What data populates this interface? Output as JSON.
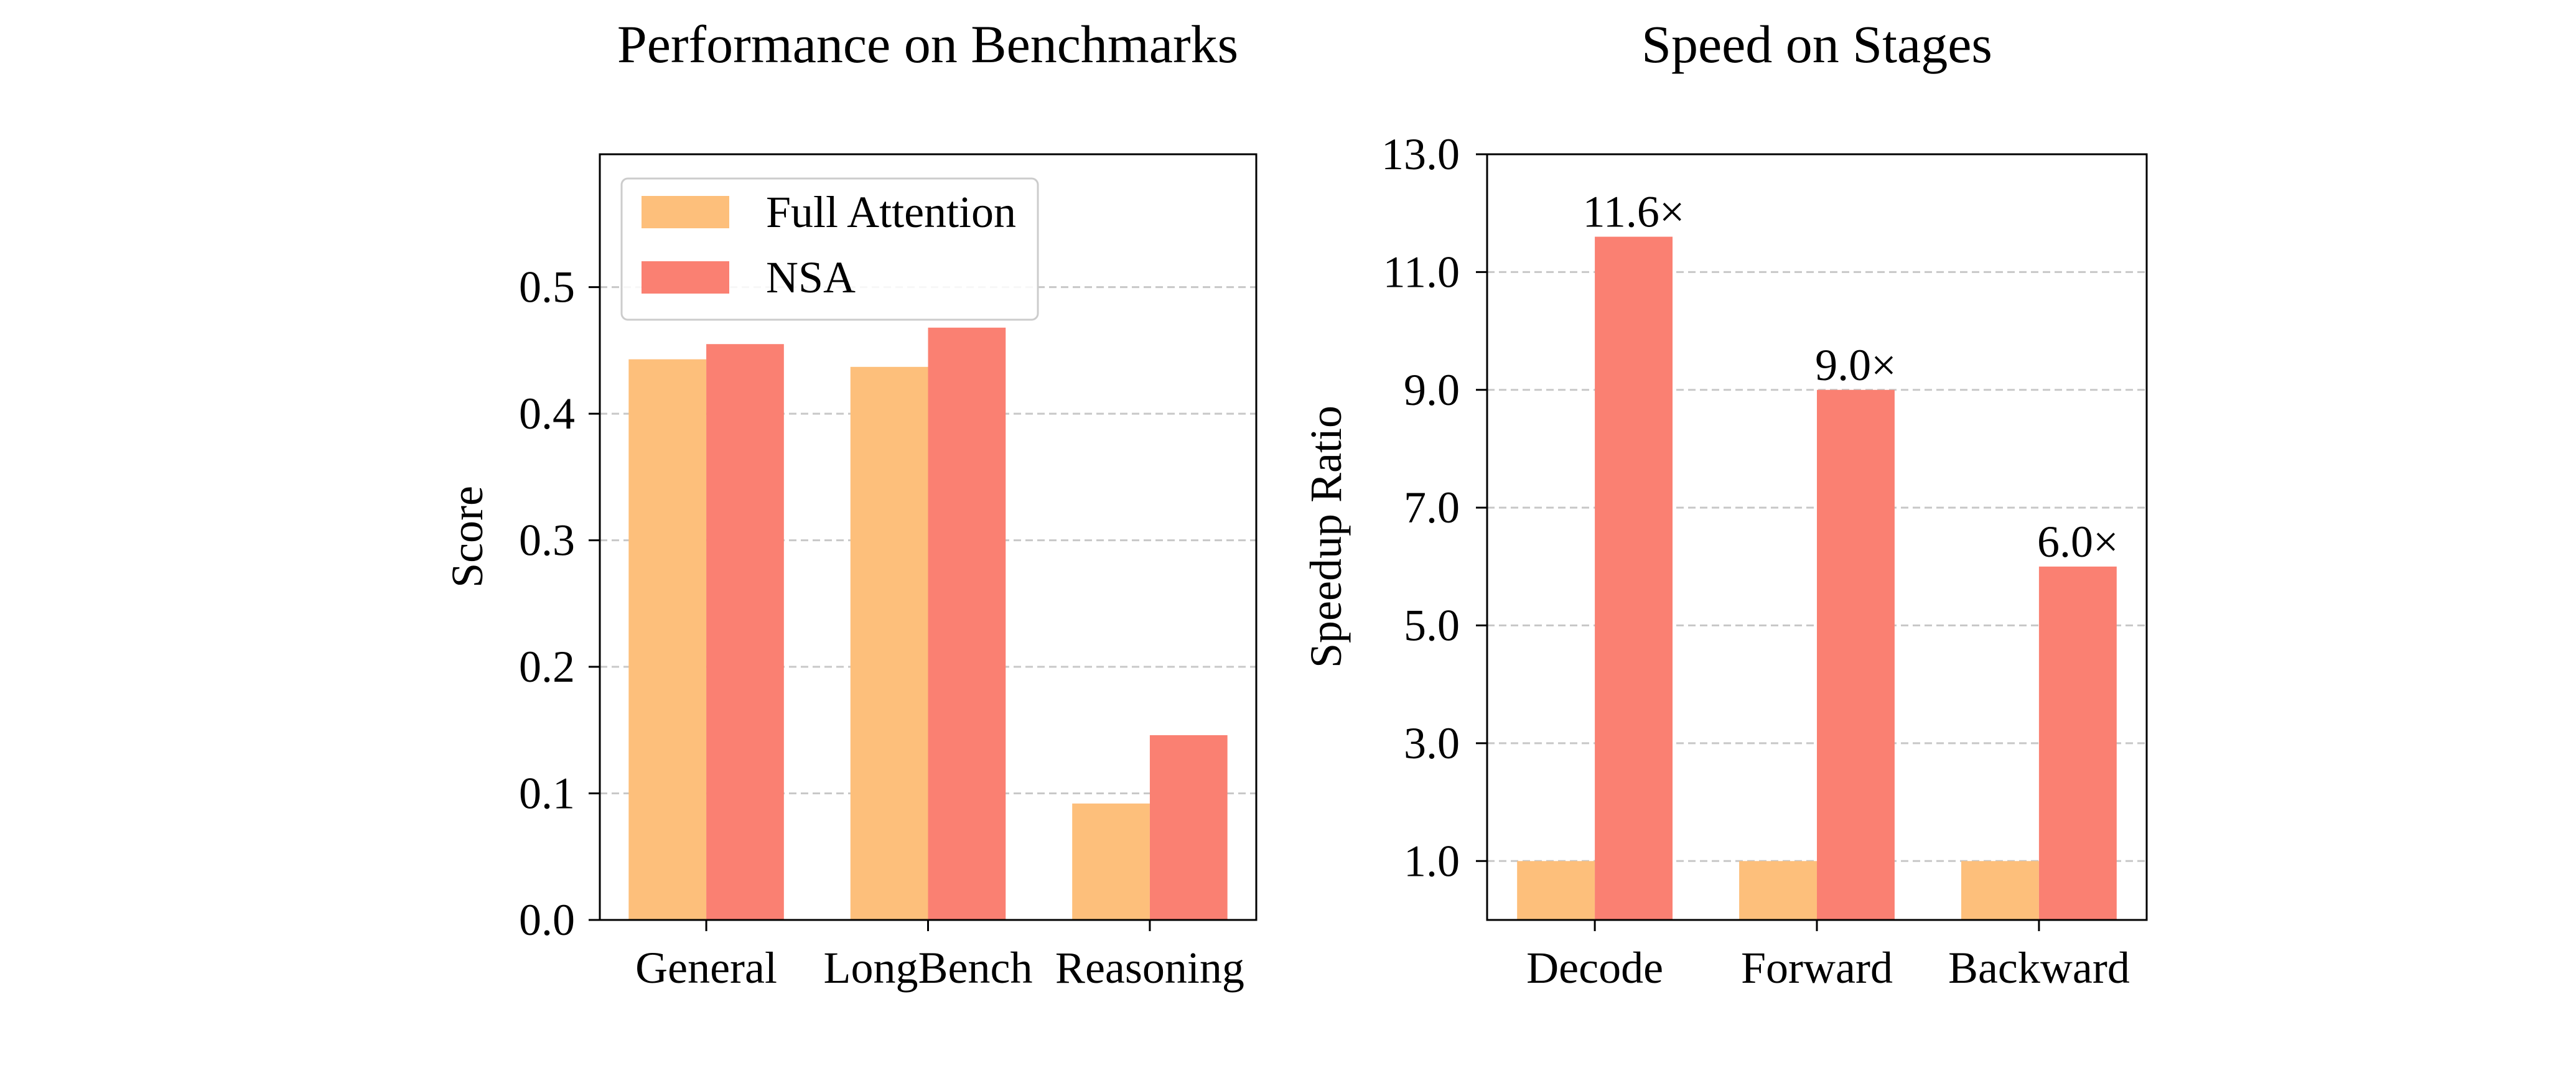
{
  "chart_data": [
    {
      "type": "bar",
      "title": "Performance on Benchmarks",
      "xlabel": "",
      "ylabel": "Score",
      "categories": [
        "General",
        "LongBench",
        "Reasoning"
      ],
      "series": [
        {
          "name": "Full Attention",
          "values": [
            0.443,
            0.437,
            0.092
          ]
        },
        {
          "name": "NSA",
          "values": [
            0.455,
            0.468,
            0.146
          ]
        }
      ],
      "ylim": [
        0,
        0.605
      ],
      "yticks": [
        0.0,
        0.1,
        0.2,
        0.3,
        0.4,
        0.5
      ],
      "grid": "horizontal dashed",
      "legend": "upper-left"
    },
    {
      "type": "bar",
      "title": "Speed on Stages",
      "xlabel": "",
      "ylabel": "Speedup Ratio",
      "categories": [
        "Decode",
        "Forward",
        "Backward"
      ],
      "series": [
        {
          "name": "Full Attention",
          "values": [
            1.0,
            1.0,
            1.0
          ]
        },
        {
          "name": "NSA",
          "values": [
            11.6,
            9.0,
            6.0
          ]
        }
      ],
      "bar_labels": [
        "11.6×",
        "9.0×",
        "6.0×"
      ],
      "ylim": [
        0,
        13
      ],
      "yticks": [
        1.0,
        3.0,
        5.0,
        7.0,
        9.0,
        11.0,
        13.0
      ],
      "grid": "horizontal dashed",
      "legend": "none"
    }
  ],
  "colors": {
    "full_attention": "#FDBF7B",
    "nsa": "#FA8072",
    "grid": "#C8C8C8",
    "legend_border": "#CCCCCC"
  }
}
